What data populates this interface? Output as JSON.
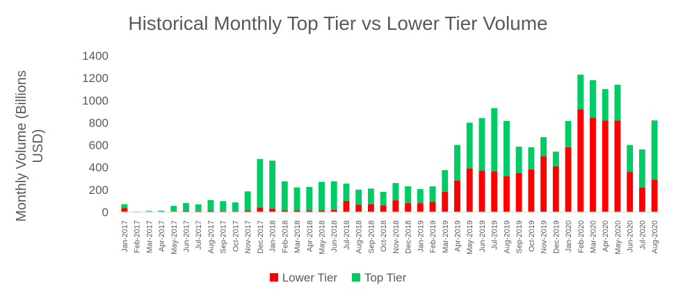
{
  "chart_data": {
    "type": "bar",
    "stacked": true,
    "title": "Historical Monthly Top Tier vs Lower Tier Volume",
    "ylabel": "Monthly Volume (Billions USD)",
    "xlabel": "",
    "ylim": [
      0,
      1400
    ],
    "yticks": [
      0,
      200,
      400,
      600,
      800,
      1000,
      1200,
      1400
    ],
    "grid": false,
    "legend_position": "bottom",
    "categories": [
      "Jan-2017",
      "Feb-2017",
      "Mar-2017",
      "Apr-2017",
      "May-2017",
      "Jun-2017",
      "Jul-2017",
      "Aug-2017",
      "Sep-2017",
      "Oct-2017",
      "Nov-2017",
      "Dec-2017",
      "Jan-2018",
      "Feb-2018",
      "Mar-2018",
      "Apr-2018",
      "May-2018",
      "Jun-2018",
      "Jul-2018",
      "Aug-2018",
      "Sep-2018",
      "Oct-2018",
      "Nov-2018",
      "Dec-2018",
      "Jan-2019",
      "Feb-2019",
      "Mar-2019",
      "Apr-2019",
      "May-2019",
      "Jun-2019",
      "Jul-2019",
      "Aug-2019",
      "Sep-2019",
      "Oct-2019",
      "Nov-2019",
      "Dec-2019",
      "Jan-2020",
      "Feb-2020",
      "Mar-2020",
      "Apr-2020",
      "May-2020",
      "Jun-2020",
      "Jul-2020",
      "Aug-2020"
    ],
    "series": [
      {
        "name": "Lower Tier",
        "color": "#ff0000",
        "values": [
          35,
          2,
          2,
          2,
          5,
          10,
          8,
          12,
          8,
          6,
          15,
          40,
          30,
          15,
          15,
          15,
          15,
          20,
          100,
          65,
          70,
          60,
          105,
          80,
          80,
          90,
          180,
          280,
          390,
          370,
          365,
          320,
          350,
          380,
          500,
          410,
          580,
          920,
          845,
          820,
          820,
          360,
          220,
          290
        ]
      },
      {
        "name": "Top Tier",
        "color": "#00cc66",
        "values": [
          35,
          3,
          8,
          10,
          50,
          70,
          60,
          95,
          90,
          80,
          170,
          435,
          430,
          260,
          205,
          210,
          255,
          255,
          155,
          135,
          140,
          120,
          155,
          150,
          125,
          140,
          195,
          320,
          410,
          470,
          565,
          495,
          235,
          200,
          170,
          130,
          235,
          310,
          335,
          280,
          320,
          240,
          340,
          530
        ]
      }
    ]
  }
}
